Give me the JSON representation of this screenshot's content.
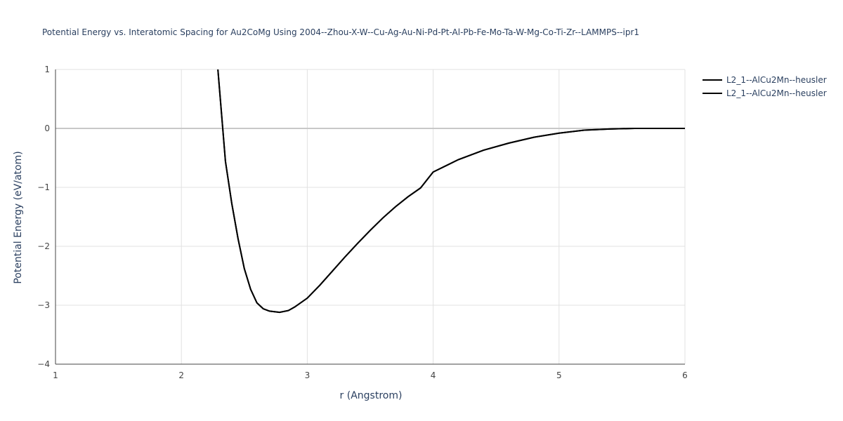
{
  "chart_data": {
    "type": "line",
    "title": "Potential Energy vs. Interatomic Spacing for Au2CoMg Using 2004--Zhou-X-W--Cu-Ag-Au-Ni-Pd-Pt-Al-Pb-Fe-Mo-Ta-W-Mg-Co-Ti-Zr--LAMMPS--ipr1",
    "x_label": "r (Angstrom)",
    "y_label": "Potential Energy (eV/atom)",
    "x": [
      2.29,
      2.35,
      2.4,
      2.45,
      2.5,
      2.55,
      2.6,
      2.65,
      2.7,
      2.78,
      2.85,
      2.9,
      3.0,
      3.1,
      3.2,
      3.3,
      3.4,
      3.5,
      3.6,
      3.7,
      3.8,
      3.9,
      4.0,
      4.2,
      4.4,
      4.6,
      4.8,
      5.0,
      5.2,
      5.4,
      5.6,
      6.0
    ],
    "series": [
      {
        "name": "L2_1--AlCu2Mn--heusler",
        "color": "#000000",
        "values": [
          1.0,
          -0.56,
          -1.27,
          -1.87,
          -2.38,
          -2.73,
          -2.96,
          -3.06,
          -3.1,
          -3.12,
          -3.09,
          -3.03,
          -2.88,
          -2.66,
          -2.42,
          -2.18,
          -1.95,
          -1.73,
          -1.52,
          -1.33,
          -1.16,
          -1.01,
          -0.74,
          -0.53,
          -0.37,
          -0.25,
          -0.15,
          -0.08,
          -0.03,
          -0.01,
          0,
          0
        ]
      },
      {
        "name": "L2_1--AlCu2Mn--heusler",
        "color": "#000000",
        "values": [
          1.0,
          -0.56,
          -1.27,
          -1.87,
          -2.38,
          -2.73,
          -2.96,
          -3.06,
          -3.1,
          -3.12,
          -3.09,
          -3.03,
          -2.88,
          -2.66,
          -2.42,
          -2.18,
          -1.95,
          -1.73,
          -1.52,
          -1.33,
          -1.16,
          -1.01,
          -0.74,
          -0.53,
          -0.37,
          -0.25,
          -0.15,
          -0.08,
          -0.03,
          -0.01,
          0,
          0
        ]
      }
    ],
    "xlim": [
      1,
      6
    ],
    "xticks": [
      1,
      2,
      3,
      4,
      5,
      6
    ],
    "ylim": [
      -4,
      1
    ],
    "yticks": [
      {
        "value": -4,
        "label": "−4"
      },
      {
        "value": -3,
        "label": "−3"
      },
      {
        "value": -2,
        "label": "−2"
      },
      {
        "value": -1,
        "label": "−1"
      },
      0,
      1
    ],
    "grid": true
  }
}
